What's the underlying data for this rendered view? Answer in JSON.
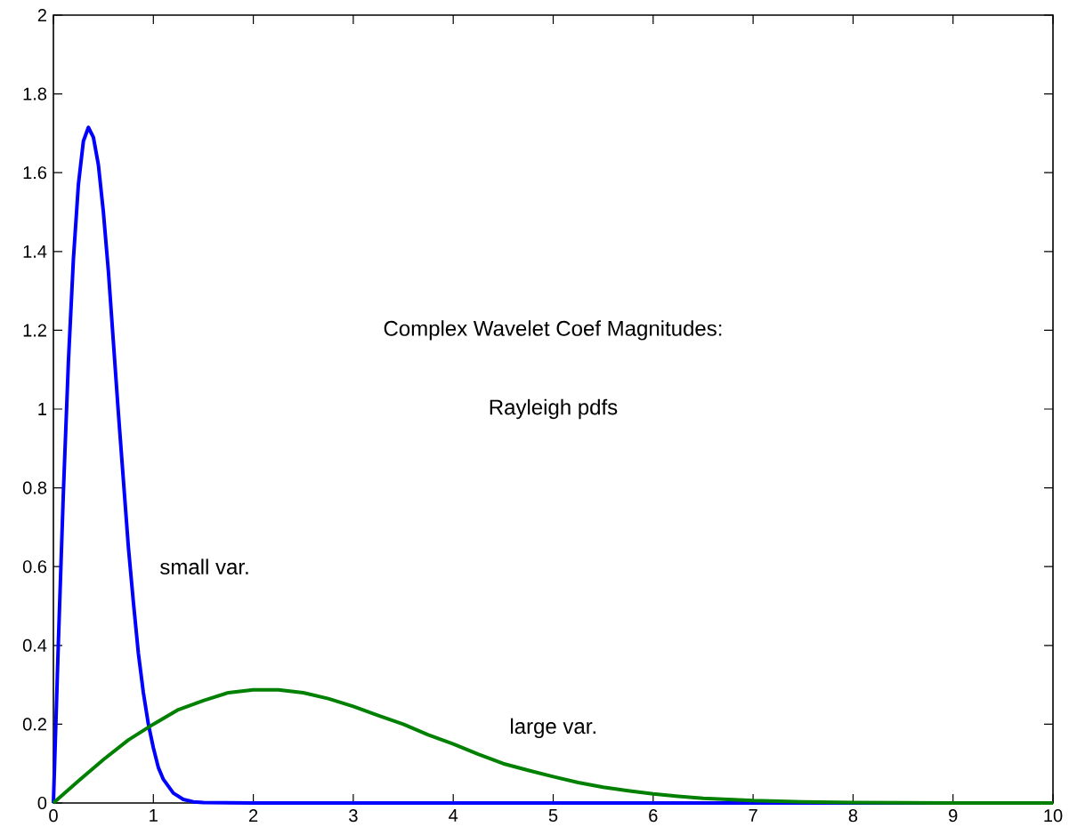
{
  "chart_data": {
    "type": "line",
    "title": "Complex Wavelet Coef Magnitudes:",
    "subtitle": "Rayleigh pdfs",
    "series": [
      {
        "color": "#0000ff",
        "x": [
          0,
          0.05,
          0.1,
          0.15,
          0.2,
          0.25,
          0.3,
          0.35,
          0.4,
          0.45,
          0.5,
          0.55,
          0.6,
          0.65,
          0.7,
          0.75,
          0.8,
          0.85,
          0.9,
          0.95,
          1,
          1.05,
          1.1,
          1.2,
          1.3,
          1.4,
          1.5,
          2,
          10
        ],
        "values": [
          0,
          0.41,
          0.79,
          1.12,
          1.38,
          1.57,
          1.68,
          1.715,
          1.69,
          1.62,
          1.5,
          1.35,
          1.17,
          0.99,
          0.82,
          0.65,
          0.51,
          0.38,
          0.28,
          0.2,
          0.14,
          0.09,
          0.06,
          0.025,
          0.009,
          0.003,
          0.001,
          0,
          0
        ]
      },
      {
        "color": "#008000",
        "x": [
          0,
          0.25,
          0.5,
          0.75,
          1,
          1.25,
          1.5,
          1.75,
          2,
          2.25,
          2.5,
          2.75,
          3,
          3.25,
          3.5,
          3.75,
          4,
          4.25,
          4.5,
          4.75,
          5,
          5.25,
          5.5,
          5.75,
          6,
          6.25,
          6.5,
          7,
          7.5,
          8,
          9,
          10
        ],
        "values": [
          0,
          0.056,
          0.11,
          0.16,
          0.2,
          0.237,
          0.26,
          0.28,
          0.287,
          0.287,
          0.28,
          0.265,
          0.245,
          0.222,
          0.2,
          0.173,
          0.15,
          0.124,
          0.1,
          0.083,
          0.067,
          0.052,
          0.04,
          0.031,
          0.023,
          0.017,
          0.012,
          0.006,
          0.003,
          0.001,
          0,
          0
        ]
      }
    ],
    "annotations": [
      "small var.",
      "large var."
    ],
    "xlim": [
      0,
      10
    ],
    "xticks": [
      0,
      1,
      2,
      3,
      4,
      5,
      6,
      7,
      8,
      9,
      10
    ],
    "ylim": [
      0,
      2
    ],
    "yticks": [
      0,
      0.2,
      0.4,
      0.6,
      0.8,
      1,
      1.2,
      1.4,
      1.6,
      1.8,
      2
    ],
    "grid": false,
    "marker": "none",
    "line_style": "solid"
  }
}
